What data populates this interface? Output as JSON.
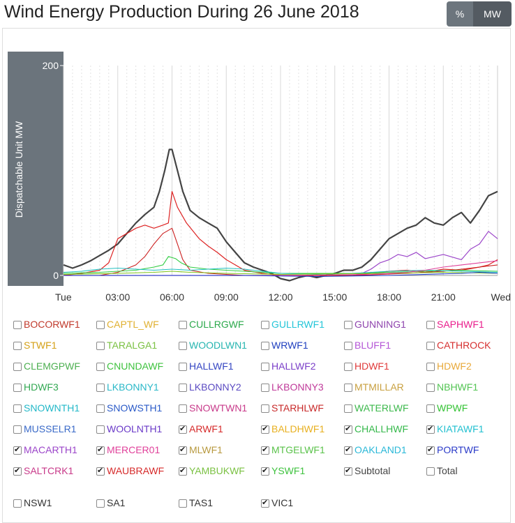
{
  "title": "Wind Energy Production During 26 June 2018",
  "toggle": {
    "percent_label": "%",
    "mw_label": "MW"
  },
  "colors": {
    "subtotal": "#444444",
    "yaxis_band": "#6b747c",
    "grid": "#dddddd"
  },
  "chart_data": {
    "type": "line",
    "ylabel": "Dispatchable Unit MW",
    "ylim": [
      0,
      200
    ],
    "yticks": [
      200,
      0
    ],
    "xlim": [
      0,
      24
    ],
    "xticks": [
      {
        "x": 0,
        "label": "Tue"
      },
      {
        "x": 3,
        "label": "03:00"
      },
      {
        "x": 6,
        "label": "06:00"
      },
      {
        "x": 9,
        "label": "09:00"
      },
      {
        "x": 12,
        "label": "12:00"
      },
      {
        "x": 15,
        "label": "15:00"
      },
      {
        "x": 18,
        "label": "18:00"
      },
      {
        "x": 21,
        "label": "21:00"
      },
      {
        "x": 24,
        "label": "Wed"
      }
    ],
    "series": [
      {
        "name": "Subtotal",
        "color": "#444444",
        "width": 2.2,
        "points": [
          [
            0,
            10
          ],
          [
            0.5,
            7
          ],
          [
            1,
            10
          ],
          [
            1.5,
            14
          ],
          [
            2,
            19
          ],
          [
            2.5,
            24
          ],
          [
            3,
            30
          ],
          [
            3.5,
            40
          ],
          [
            4,
            50
          ],
          [
            4.5,
            58
          ],
          [
            5,
            65
          ],
          [
            5.3,
            80
          ],
          [
            5.6,
            100
          ],
          [
            5.85,
            120
          ],
          [
            6,
            120
          ],
          [
            6.3,
            100
          ],
          [
            6.6,
            80
          ],
          [
            7,
            62
          ],
          [
            7.5,
            55
          ],
          [
            8,
            50
          ],
          [
            8.5,
            45
          ],
          [
            9,
            32
          ],
          [
            9.5,
            22
          ],
          [
            10,
            12
          ],
          [
            10.5,
            8
          ],
          [
            11,
            5
          ],
          [
            11.5,
            2
          ],
          [
            12,
            -3
          ],
          [
            12.5,
            -5
          ],
          [
            13,
            -2
          ],
          [
            13.5,
            0
          ],
          [
            14,
            -2
          ],
          [
            14.5,
            0
          ],
          [
            15,
            2
          ],
          [
            15.5,
            5
          ],
          [
            16,
            5
          ],
          [
            16.5,
            8
          ],
          [
            17,
            15
          ],
          [
            17.5,
            25
          ],
          [
            18,
            35
          ],
          [
            18.5,
            40
          ],
          [
            19,
            45
          ],
          [
            19.5,
            48
          ],
          [
            20,
            55
          ],
          [
            20.5,
            50
          ],
          [
            21,
            48
          ],
          [
            21.5,
            55
          ],
          [
            22,
            60
          ],
          [
            22.5,
            50
          ],
          [
            23,
            62
          ],
          [
            23.5,
            76
          ],
          [
            24,
            80
          ]
        ]
      },
      {
        "name": "MACARTH1",
        "color": "#9b45c9",
        "width": 1.2,
        "points": [
          [
            0,
            0
          ],
          [
            16,
            0
          ],
          [
            16.5,
            2
          ],
          [
            17,
            6
          ],
          [
            17.5,
            12
          ],
          [
            18,
            15
          ],
          [
            18.5,
            20
          ],
          [
            19,
            18
          ],
          [
            19.5,
            22
          ],
          [
            20,
            16
          ],
          [
            20.5,
            18
          ],
          [
            21,
            20
          ],
          [
            22,
            15
          ],
          [
            22.5,
            25
          ],
          [
            23,
            30
          ],
          [
            23.5,
            42
          ],
          [
            24,
            35
          ]
        ]
      },
      {
        "name": "ARWF1",
        "color": "#dd2222",
        "width": 1.2,
        "points": [
          [
            0,
            0
          ],
          [
            1,
            2
          ],
          [
            2,
            5
          ],
          [
            2.5,
            12
          ],
          [
            3,
            35
          ],
          [
            3.5,
            40
          ],
          [
            4,
            45
          ],
          [
            4.5,
            48
          ],
          [
            5,
            45
          ],
          [
            5.5,
            48
          ],
          [
            5.8,
            50
          ],
          [
            6,
            80
          ],
          [
            6.3,
            65
          ],
          [
            6.8,
            50
          ],
          [
            7.5,
            35
          ],
          [
            8,
            28
          ],
          [
            8.5,
            22
          ],
          [
            9,
            15
          ],
          [
            9.5,
            10
          ],
          [
            10,
            5
          ],
          [
            11,
            2
          ],
          [
            12,
            0
          ],
          [
            16,
            0
          ],
          [
            17,
            2
          ],
          [
            18,
            4
          ],
          [
            19,
            5
          ],
          [
            20,
            3
          ],
          [
            21,
            6
          ],
          [
            22,
            5
          ],
          [
            23,
            8
          ],
          [
            23.5,
            10
          ],
          [
            24,
            15
          ]
        ]
      },
      {
        "name": "WAUBRAWF",
        "color": "#cc2020",
        "width": 1.1,
        "points": [
          [
            0,
            0
          ],
          [
            2,
            0
          ],
          [
            3,
            3
          ],
          [
            4,
            10
          ],
          [
            4.5,
            18
          ],
          [
            5,
            30
          ],
          [
            5.5,
            40
          ],
          [
            6,
            45
          ],
          [
            6.3,
            30
          ],
          [
            6.6,
            15
          ],
          [
            7,
            5
          ],
          [
            8,
            2
          ],
          [
            10,
            0
          ],
          [
            16,
            0
          ],
          [
            19,
            2
          ],
          [
            21,
            4
          ],
          [
            22,
            6
          ],
          [
            23,
            8
          ],
          [
            24,
            10
          ]
        ]
      },
      {
        "name": "CHALLHWF",
        "color": "#2ecc40",
        "width": 1.1,
        "points": [
          [
            0,
            2
          ],
          [
            2,
            3
          ],
          [
            4,
            5
          ],
          [
            5,
            8
          ],
          [
            5.5,
            10
          ],
          [
            5.8,
            18
          ],
          [
            6.2,
            16
          ],
          [
            6.5,
            12
          ],
          [
            7,
            8
          ],
          [
            8,
            6
          ],
          [
            9,
            5
          ],
          [
            10,
            4
          ],
          [
            12,
            2
          ],
          [
            16,
            2
          ],
          [
            18,
            3
          ],
          [
            20,
            4
          ],
          [
            22,
            5
          ],
          [
            24,
            4
          ]
        ]
      },
      {
        "name": "OAKLAND1",
        "color": "#22c0c0",
        "width": 1.1,
        "points": [
          [
            0,
            3
          ],
          [
            1,
            4
          ],
          [
            2,
            6
          ],
          [
            3,
            7
          ],
          [
            4,
            6
          ],
          [
            5,
            5
          ],
          [
            6,
            6
          ],
          [
            7,
            5
          ],
          [
            8,
            6
          ],
          [
            9,
            7
          ],
          [
            10,
            6
          ],
          [
            11,
            4
          ],
          [
            12,
            2
          ],
          [
            14,
            1
          ],
          [
            16,
            2
          ],
          [
            18,
            4
          ],
          [
            20,
            5
          ],
          [
            22,
            4
          ],
          [
            24,
            3
          ]
        ]
      },
      {
        "name": "MTGELWF1",
        "color": "#7fc41a",
        "width": 1.1,
        "points": [
          [
            0,
            1
          ],
          [
            3,
            2
          ],
          [
            5,
            3
          ],
          [
            6,
            4
          ],
          [
            7,
            3
          ],
          [
            9,
            2
          ],
          [
            12,
            1
          ],
          [
            18,
            2
          ],
          [
            21,
            3
          ],
          [
            24,
            2
          ]
        ]
      },
      {
        "name": "MERCER01",
        "color": "#e0409a",
        "width": 1.1,
        "points": [
          [
            0,
            0
          ],
          [
            12,
            0
          ],
          [
            17,
            1
          ],
          [
            19,
            3
          ],
          [
            20,
            5
          ],
          [
            21,
            8
          ],
          [
            22,
            10
          ],
          [
            23,
            12
          ],
          [
            24,
            14
          ]
        ]
      },
      {
        "name": "PORTWF",
        "color": "#1e3cc8",
        "width": 1.1,
        "points": [
          [
            0,
            0
          ],
          [
            10,
            0
          ],
          [
            14,
            -1
          ],
          [
            18,
            0
          ],
          [
            22,
            2
          ],
          [
            23,
            3
          ],
          [
            24,
            2
          ]
        ]
      }
    ]
  },
  "legend": [
    {
      "label": "BOCORWF1",
      "color": "#c0392b",
      "checked": false
    },
    {
      "label": "CAPTL_WF",
      "color": "#e0b030",
      "checked": false
    },
    {
      "label": "CULLRGWF",
      "color": "#2aa84a",
      "checked": false
    },
    {
      "label": "GULLRWF1",
      "color": "#22c5d8",
      "checked": false
    },
    {
      "label": "GUNNING1",
      "color": "#8e44ad",
      "checked": false
    },
    {
      "label": "SAPHWF1",
      "color": "#e91e8c",
      "checked": false
    },
    {
      "label": "STWF1",
      "color": "#d4a017",
      "checked": false
    },
    {
      "label": "TARALGA1",
      "color": "#7ac142",
      "checked": false
    },
    {
      "label": "WOODLWN1",
      "color": "#26b5b0",
      "checked": false
    },
    {
      "label": "WRWF1",
      "color": "#1f3fbf",
      "checked": false
    },
    {
      "label": "BLUFF1",
      "color": "#b455d6",
      "checked": false
    },
    {
      "label": "CATHROCK",
      "color": "#d63030",
      "checked": false
    },
    {
      "label": "CLEMGPWF",
      "color": "#4caf50",
      "checked": false
    },
    {
      "label": "CNUNDAWF",
      "color": "#3ec23e",
      "checked": false
    },
    {
      "label": "HALLWF1",
      "color": "#3344c2",
      "checked": false
    },
    {
      "label": "HALLWF2",
      "color": "#7a3ec8",
      "checked": false
    },
    {
      "label": "HDWF1",
      "color": "#e03a3a",
      "checked": false
    },
    {
      "label": "HDWF2",
      "color": "#e8a838",
      "checked": false
    },
    {
      "label": "HDWF3",
      "color": "#32a852",
      "checked": false
    },
    {
      "label": "LKBONNY1",
      "color": "#2ab8c8",
      "checked": false
    },
    {
      "label": "LKBONNY2",
      "color": "#5a4ac2",
      "checked": false
    },
    {
      "label": "LKBONNY3",
      "color": "#c03a9a",
      "checked": false
    },
    {
      "label": "MTMILLAR",
      "color": "#c8a040",
      "checked": false
    },
    {
      "label": "NBHWF1",
      "color": "#52c452",
      "checked": false
    },
    {
      "label": "SNOWNTH1",
      "color": "#22b8c8",
      "checked": false
    },
    {
      "label": "SNOWSTH1",
      "color": "#2a5ac8",
      "checked": false
    },
    {
      "label": "SNOWTWN1",
      "color": "#c83a8a",
      "checked": false
    },
    {
      "label": "STARHLWF",
      "color": "#c82a2a",
      "checked": false
    },
    {
      "label": "WATERLWF",
      "color": "#3cb84c",
      "checked": false
    },
    {
      "label": "WPWF",
      "color": "#32c232",
      "checked": false
    },
    {
      "label": "MUSSELR1",
      "color": "#3a6ac8",
      "checked": false
    },
    {
      "label": "WOOLNTH1",
      "color": "#6a3ac8",
      "checked": false
    },
    {
      "label": "ARWF1",
      "color": "#d62a2a",
      "checked": true
    },
    {
      "label": "BALDHWF1",
      "color": "#e8b020",
      "checked": true
    },
    {
      "label": "CHALLHWF",
      "color": "#34b84a",
      "checked": true
    },
    {
      "label": "KIATAWF1",
      "color": "#22c0d0",
      "checked": true
    },
    {
      "label": "MACARTH1",
      "color": "#9b45c9",
      "checked": true
    },
    {
      "label": "MERCER01",
      "color": "#e0409a",
      "checked": true
    },
    {
      "label": "MLWF1",
      "color": "#b89a40",
      "checked": true
    },
    {
      "label": "MTGELWF1",
      "color": "#5ac24a",
      "checked": true
    },
    {
      "label": "OAKLAND1",
      "color": "#2ab8d8",
      "checked": true
    },
    {
      "label": "PORTWF",
      "color": "#2a3ac8",
      "checked": true
    },
    {
      "label": "SALTCRK1",
      "color": "#c83a8a",
      "checked": true
    },
    {
      "label": "WAUBRAWF",
      "color": "#d62a2a",
      "checked": true
    },
    {
      "label": "YAMBUKWF",
      "color": "#7ac142",
      "checked": true
    },
    {
      "label": "YSWF1",
      "color": "#3ec23e",
      "checked": true
    },
    {
      "label": "Subtotal",
      "color": "#444444",
      "checked": true
    },
    {
      "label": "Total",
      "color": "#444444",
      "checked": false
    }
  ],
  "regions": [
    {
      "label": "NSW1",
      "checked": false
    },
    {
      "label": "SA1",
      "checked": false
    },
    {
      "label": "TAS1",
      "checked": false
    },
    {
      "label": "VIC1",
      "checked": true
    }
  ]
}
